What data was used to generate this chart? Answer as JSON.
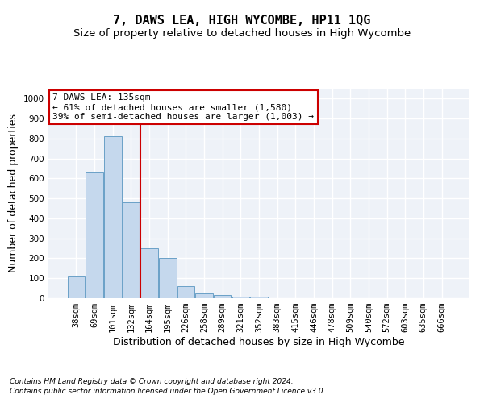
{
  "title": "7, DAWS LEA, HIGH WYCOMBE, HP11 1QG",
  "subtitle": "Size of property relative to detached houses in High Wycombe",
  "xlabel": "Distribution of detached houses by size in High Wycombe",
  "ylabel": "Number of detached properties",
  "categories": [
    "38sqm",
    "69sqm",
    "101sqm",
    "132sqm",
    "164sqm",
    "195sqm",
    "226sqm",
    "258sqm",
    "289sqm",
    "321sqm",
    "352sqm",
    "383sqm",
    "415sqm",
    "446sqm",
    "478sqm",
    "509sqm",
    "540sqm",
    "572sqm",
    "603sqm",
    "635sqm",
    "666sqm"
  ],
  "values": [
    110,
    630,
    810,
    480,
    250,
    200,
    60,
    25,
    18,
    10,
    10,
    0,
    0,
    0,
    0,
    0,
    0,
    0,
    0,
    0,
    0
  ],
  "bar_color": "#c5d8ed",
  "bar_edge_color": "#6aa0c7",
  "highlight_line_color": "#cc0000",
  "highlight_line_index": 3,
  "annotation_text": "7 DAWS LEA: 135sqm\n← 61% of detached houses are smaller (1,580)\n39% of semi-detached houses are larger (1,003) →",
  "annotation_box_color": "#ffffff",
  "annotation_box_edge": "#cc0000",
  "ylim": [
    0,
    1050
  ],
  "yticks": [
    0,
    100,
    200,
    300,
    400,
    500,
    600,
    700,
    800,
    900,
    1000
  ],
  "footer_line1": "Contains HM Land Registry data © Crown copyright and database right 2024.",
  "footer_line2": "Contains public sector information licensed under the Open Government Licence v3.0.",
  "background_color": "#eef2f8",
  "grid_color": "#ffffff",
  "title_fontsize": 11,
  "subtitle_fontsize": 9.5,
  "axis_label_fontsize": 9,
  "tick_fontsize": 7.5,
  "footer_fontsize": 6.5
}
